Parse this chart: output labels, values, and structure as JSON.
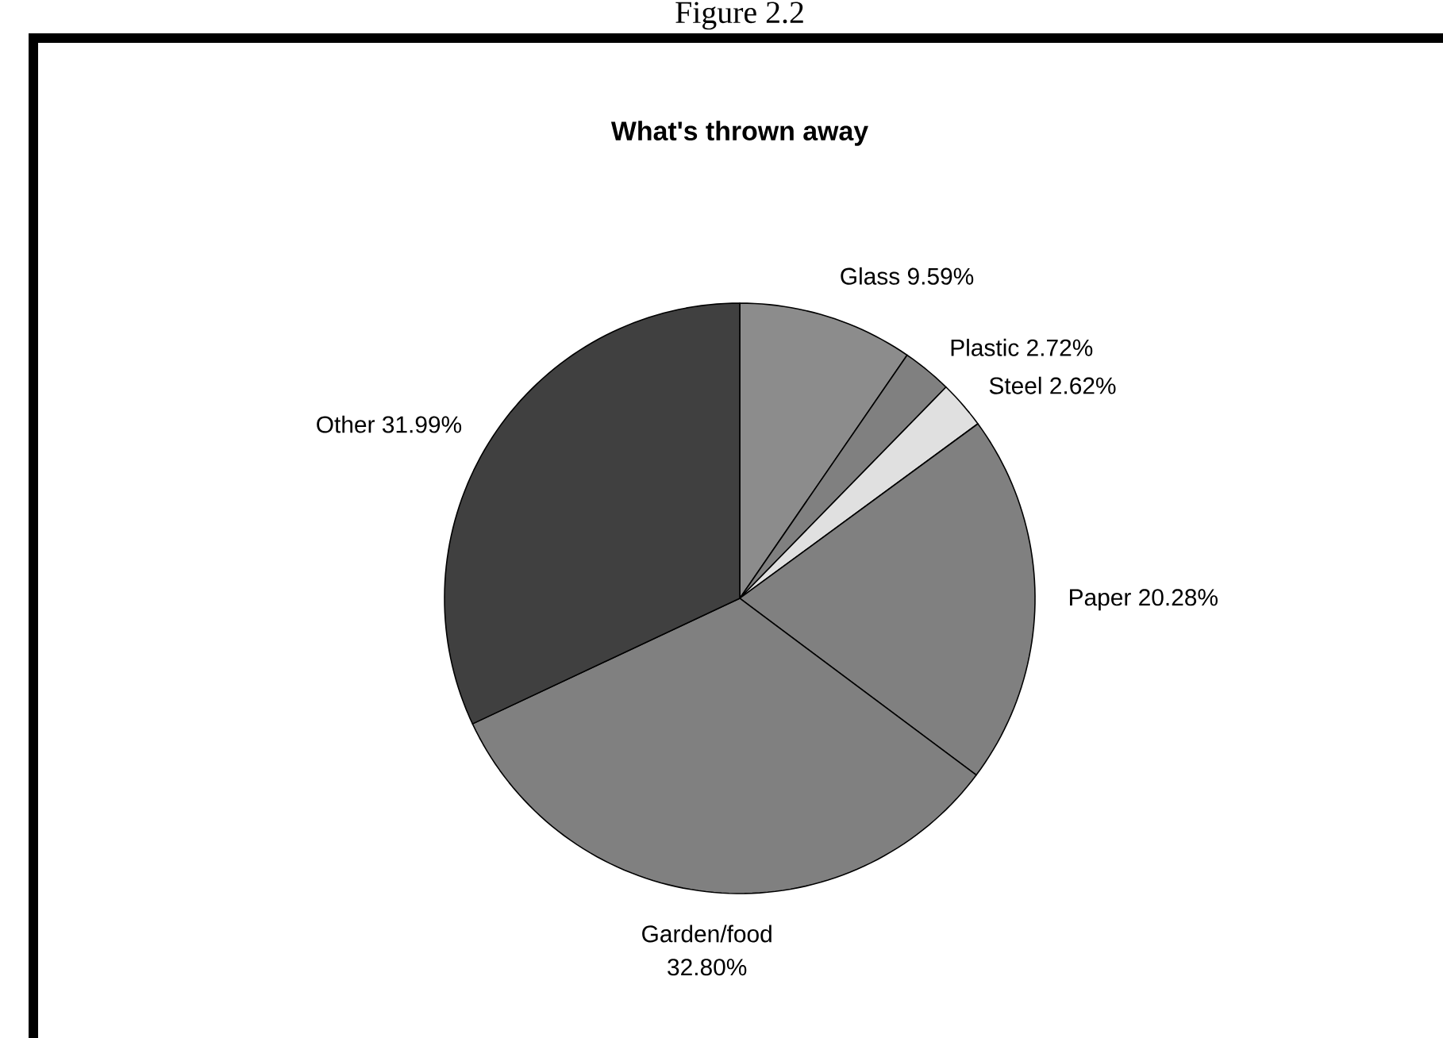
{
  "chart_data": {
    "type": "pie",
    "title": "What's thrown away",
    "annotations": [
      "Figure 2.2"
    ],
    "categories": [
      "Glass",
      "Plastic",
      "Steel",
      "Paper",
      "Garden/food",
      "Other"
    ],
    "values": [
      9.59,
      2.72,
      2.62,
      20.28,
      32.8,
      31.99
    ],
    "value_labels": [
      "9.59%",
      "2.72%",
      "2.62%",
      "20.28%",
      "32.80%",
      "31.99%"
    ],
    "colors": [
      "#8c8c8c",
      "#808080",
      "#e0e0e0",
      "#808080",
      "#808080",
      "#404040"
    ]
  }
}
